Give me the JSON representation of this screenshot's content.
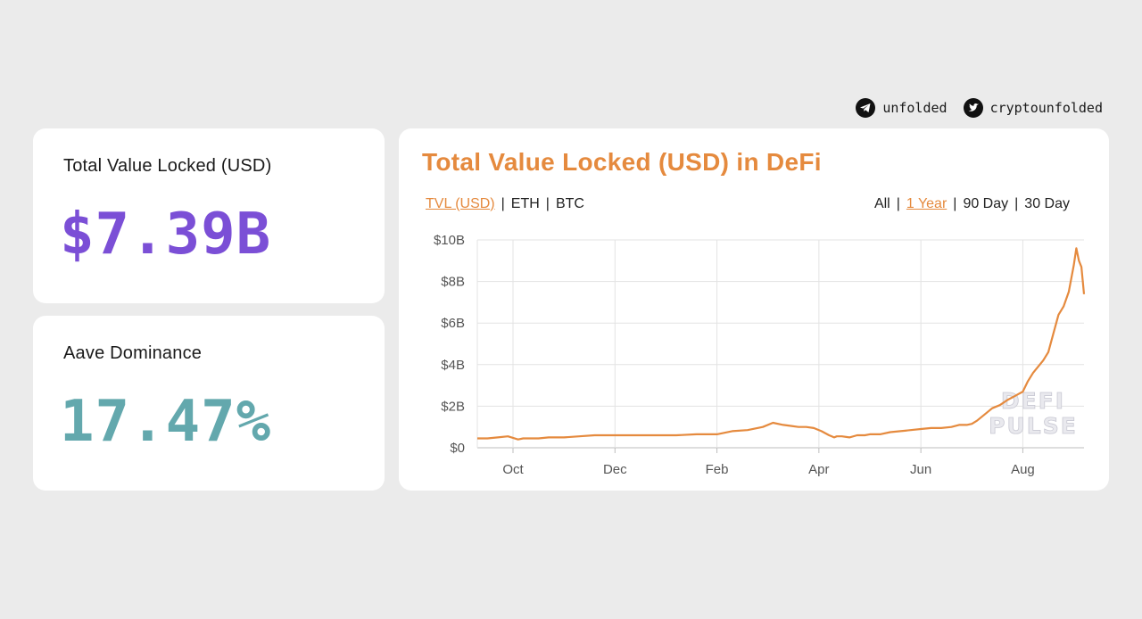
{
  "social": {
    "telegram_handle": "unfolded",
    "twitter_handle": "cryptounfolded",
    "telegram_icon": "telegram-icon",
    "twitter_icon": "twitter-icon"
  },
  "stats": {
    "tvl": {
      "label": "Total Value Locked (USD)",
      "value": "$7.39B",
      "color": "#7b4fd6"
    },
    "aave": {
      "label": "Aave Dominance",
      "value": "17.47%",
      "color": "#63a8ad"
    }
  },
  "chart_panel": {
    "title": "Total Value Locked (USD) in DeFi",
    "currency_options": [
      "TVL (USD)",
      "ETH",
      "BTC"
    ],
    "currency_selected": "TVL (USD)",
    "range_options": [
      "All",
      "1 Year",
      "90 Day",
      "30 Day"
    ],
    "range_selected": "1 Year",
    "watermark": [
      "DEFI",
      "PULSE"
    ]
  },
  "chart_data": {
    "type": "line",
    "title": "",
    "xlabel": "",
    "ylabel": "",
    "x_ticks": [
      "Oct",
      "Dec",
      "Feb",
      "Apr",
      "Jun",
      "Aug"
    ],
    "y_ticks": [
      "$0",
      "$2B",
      "$4B",
      "$6B",
      "$8B",
      "$10B"
    ],
    "ylim": [
      0,
      10
    ],
    "xlim_months": [
      8.3,
      20.2
    ],
    "grid": true,
    "line_color": "#e58a3e",
    "series": [
      {
        "x": [
          8.3,
          8.5,
          8.7,
          8.9,
          9.1,
          9.2,
          9.3,
          9.5,
          9.7,
          10.0,
          10.3,
          10.6,
          11.0,
          11.4,
          11.8,
          12.2,
          12.6,
          13.0,
          13.3,
          13.6,
          13.9,
          14.1,
          14.3,
          14.45,
          14.6,
          14.75,
          14.9,
          15.05,
          15.2,
          15.3,
          15.35,
          15.45,
          15.6,
          15.75,
          15.9,
          16.0,
          16.2,
          16.4,
          16.6,
          16.8,
          17.0,
          17.2,
          17.4,
          17.6,
          17.75,
          17.9,
          18.0,
          18.1,
          18.25,
          18.4,
          18.55,
          18.7,
          18.85,
          19.0,
          19.1,
          19.2,
          19.3,
          19.4,
          19.5,
          19.6,
          19.7,
          19.8,
          19.9,
          20.0,
          20.05,
          20.1,
          20.15,
          20.2
        ],
        "values": [
          0.45,
          0.45,
          0.5,
          0.55,
          0.4,
          0.45,
          0.45,
          0.45,
          0.5,
          0.5,
          0.55,
          0.6,
          0.6,
          0.6,
          0.6,
          0.6,
          0.65,
          0.65,
          0.8,
          0.85,
          1.0,
          1.2,
          1.1,
          1.05,
          1.0,
          1.0,
          0.95,
          0.8,
          0.6,
          0.5,
          0.55,
          0.55,
          0.5,
          0.6,
          0.6,
          0.65,
          0.65,
          0.75,
          0.8,
          0.85,
          0.9,
          0.95,
          0.95,
          1.0,
          1.1,
          1.1,
          1.15,
          1.3,
          1.6,
          1.9,
          2.05,
          2.3,
          2.5,
          2.7,
          3.2,
          3.6,
          3.9,
          4.2,
          4.6,
          5.5,
          6.4,
          6.8,
          7.5,
          8.8,
          9.6,
          9.0,
          8.7,
          7.39
        ]
      }
    ]
  }
}
